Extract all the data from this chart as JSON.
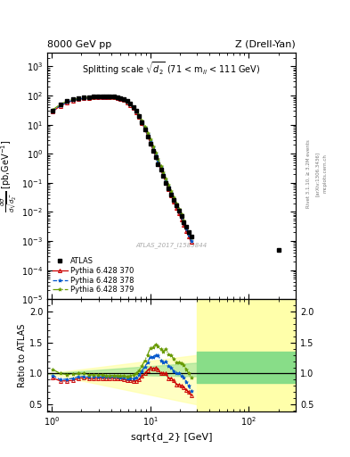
{
  "title_left": "8000 GeV pp",
  "title_right": "Z (Drell-Yan)",
  "plot_title": "Splitting scale $\\sqrt{\\mathregular{d_2}}$ (71 < m$_{\\mathregular{ll}}$ < 111 GeV)",
  "ylabel_main": "d$\\sigma$/dsqrt($d^-_2$) [pb,GeV$^{-1}$]",
  "ylabel_ratio": "Ratio to ATLAS",
  "xlabel": "sqrt{d_2} [GeV]",
  "watermark": "ATLAS_2017_I1589844",
  "rivet_label": "Rivet 3.1.10, ≥ 3.2M events",
  "arxiv_label": "[arXiv:1306.3436]",
  "mcplots_label": "mcplots.cern.ch",
  "atlas_x": [
    1.02,
    1.22,
    1.43,
    1.65,
    1.88,
    2.13,
    2.39,
    2.66,
    2.95,
    3.25,
    3.57,
    3.9,
    4.25,
    4.62,
    5.0,
    5.4,
    5.83,
    6.27,
    6.73,
    7.21,
    7.72,
    8.25,
    8.8,
    9.38,
    9.99,
    10.6,
    11.3,
    12.0,
    12.8,
    13.6,
    14.4,
    15.3,
    16.3,
    17.3,
    18.4,
    19.5,
    20.7,
    21.9,
    23.2,
    24.6,
    26.0,
    200.0
  ],
  "atlas_y": [
    30.0,
    50.0,
    65.0,
    75.0,
    80.0,
    85.0,
    90.0,
    92.0,
    93.0,
    94.0,
    94.0,
    93.0,
    91.0,
    87.0,
    82.0,
    75.0,
    65.0,
    53.0,
    41.0,
    30.0,
    20.0,
    12.0,
    7.0,
    4.0,
    2.2,
    1.3,
    0.75,
    0.45,
    0.28,
    0.17,
    0.1,
    0.065,
    0.04,
    0.026,
    0.017,
    0.011,
    0.007,
    0.0045,
    0.003,
    0.002,
    0.0014,
    0.0005
  ],
  "py370_x": [
    1.02,
    1.22,
    1.43,
    1.65,
    1.88,
    2.13,
    2.39,
    2.66,
    2.95,
    3.25,
    3.57,
    3.9,
    4.25,
    4.62,
    5.0,
    5.4,
    5.83,
    6.27,
    6.73,
    7.21,
    7.72,
    8.25,
    8.8,
    9.38,
    9.99,
    10.6,
    11.3,
    12.0,
    12.8,
    13.6,
    14.4,
    15.3,
    16.3,
    17.3,
    18.4,
    19.5,
    20.7,
    21.9,
    23.2,
    24.6,
    26.0
  ],
  "py370_y": [
    28.0,
    44.0,
    57.0,
    67.0,
    74.0,
    79.0,
    83.0,
    85.0,
    86.0,
    87.0,
    87.0,
    86.0,
    84.0,
    80.0,
    75.0,
    68.0,
    58.0,
    47.0,
    36.0,
    26.5,
    18.0,
    11.5,
    7.0,
    4.2,
    2.4,
    1.4,
    0.82,
    0.48,
    0.28,
    0.17,
    0.1,
    0.06,
    0.037,
    0.023,
    0.014,
    0.009,
    0.0056,
    0.0035,
    0.0022,
    0.0014,
    0.0009
  ],
  "py378_x": [
    1.02,
    1.22,
    1.43,
    1.65,
    1.88,
    2.13,
    2.39,
    2.66,
    2.95,
    3.25,
    3.57,
    3.9,
    4.25,
    4.62,
    5.0,
    5.4,
    5.83,
    6.27,
    6.73,
    7.21,
    7.72,
    8.25,
    8.8,
    9.38,
    9.99,
    10.6,
    11.3,
    12.0,
    12.8,
    13.6,
    14.4,
    15.3,
    16.3,
    17.3,
    18.4,
    19.5,
    20.7,
    21.9,
    23.2,
    24.6,
    26.0
  ],
  "py378_y": [
    29.0,
    45.0,
    59.0,
    69.0,
    76.0,
    81.0,
    85.0,
    87.0,
    88.0,
    89.0,
    89.0,
    88.0,
    86.0,
    82.0,
    77.0,
    70.0,
    60.0,
    49.0,
    38.0,
    28.0,
    19.5,
    12.5,
    7.8,
    4.7,
    2.8,
    1.65,
    0.97,
    0.58,
    0.34,
    0.2,
    0.12,
    0.073,
    0.044,
    0.027,
    0.017,
    0.011,
    0.0067,
    0.0042,
    0.0026,
    0.0016,
    0.001
  ],
  "py379_x": [
    1.02,
    1.22,
    1.43,
    1.65,
    1.88,
    2.13,
    2.39,
    2.66,
    2.95,
    3.25,
    3.57,
    3.9,
    4.25,
    4.62,
    5.0,
    5.4,
    5.83,
    6.27,
    6.73,
    7.21,
    7.72,
    8.25,
    8.8,
    9.38,
    9.99,
    10.6,
    11.3,
    12.0,
    12.8,
    13.6,
    14.4,
    15.3,
    16.3,
    17.3,
    18.4,
    19.5,
    20.7,
    21.9,
    23.2,
    24.6,
    26.0
  ],
  "py379_y": [
    32.0,
    50.0,
    64.0,
    74.0,
    80.0,
    85.0,
    88.0,
    90.0,
    91.0,
    92.0,
    91.0,
    90.0,
    88.0,
    84.0,
    79.0,
    72.0,
    62.0,
    51.0,
    40.0,
    30.0,
    21.0,
    13.5,
    8.5,
    5.2,
    3.1,
    1.85,
    1.1,
    0.65,
    0.39,
    0.23,
    0.14,
    0.085,
    0.052,
    0.032,
    0.02,
    0.013,
    0.0082,
    0.0051,
    0.0032,
    0.002,
    0.0013
  ],
  "ratio_370_x": [
    1.02,
    1.22,
    1.43,
    1.65,
    1.88,
    2.13,
    2.39,
    2.66,
    2.95,
    3.25,
    3.57,
    3.9,
    4.25,
    4.62,
    5.0,
    5.4,
    5.83,
    6.27,
    6.73,
    7.21,
    7.72,
    8.25,
    8.8,
    9.38,
    9.99,
    10.6,
    11.3,
    12.0,
    12.8,
    13.6,
    14.4,
    15.3,
    16.3,
    17.3,
    18.4,
    19.5,
    20.7,
    21.9,
    23.2,
    24.6,
    26.0
  ],
  "ratio_370_y": [
    0.93,
    0.88,
    0.88,
    0.89,
    0.925,
    0.93,
    0.92,
    0.92,
    0.925,
    0.925,
    0.925,
    0.925,
    0.923,
    0.92,
    0.915,
    0.907,
    0.892,
    0.887,
    0.878,
    0.883,
    0.9,
    0.958,
    1.0,
    1.05,
    1.09,
    1.08,
    1.09,
    1.07,
    1.0,
    1.0,
    1.0,
    0.923,
    0.925,
    0.885,
    0.824,
    0.818,
    0.8,
    0.778,
    0.733,
    0.7,
    0.643
  ],
  "ratio_378_x": [
    1.02,
    1.22,
    1.43,
    1.65,
    1.88,
    2.13,
    2.39,
    2.66,
    2.95,
    3.25,
    3.57,
    3.9,
    4.25,
    4.62,
    5.0,
    5.4,
    5.83,
    6.27,
    6.73,
    7.21,
    7.72,
    8.25,
    8.8,
    9.38,
    9.99,
    10.6,
    11.3,
    12.0,
    12.8,
    13.6,
    14.4,
    15.3,
    16.3,
    17.3,
    18.4,
    19.5,
    20.7,
    21.9,
    23.2,
    24.6,
    26.0
  ],
  "ratio_378_y": [
    0.97,
    0.9,
    0.91,
    0.92,
    0.95,
    0.953,
    0.944,
    0.946,
    0.946,
    0.947,
    0.947,
    0.946,
    0.945,
    0.943,
    0.939,
    0.933,
    0.923,
    0.925,
    0.927,
    0.933,
    0.975,
    1.042,
    1.114,
    1.175,
    1.273,
    1.269,
    1.293,
    1.289,
    1.214,
    1.176,
    1.2,
    1.123,
    1.1,
    1.038,
    1.0,
    1.0,
    0.957,
    0.933,
    0.867,
    0.8,
    0.714
  ],
  "ratio_379_x": [
    1.02,
    1.22,
    1.43,
    1.65,
    1.88,
    2.13,
    2.39,
    2.66,
    2.95,
    3.25,
    3.57,
    3.9,
    4.25,
    4.62,
    5.0,
    5.4,
    5.83,
    6.27,
    6.73,
    7.21,
    7.72,
    8.25,
    8.8,
    9.38,
    9.99,
    10.6,
    11.3,
    12.0,
    12.8,
    13.6,
    14.4,
    15.3,
    16.3,
    17.3,
    18.4,
    19.5,
    20.7,
    21.9,
    23.2,
    24.6,
    26.0
  ],
  "ratio_379_y": [
    1.067,
    1.0,
    0.985,
    0.987,
    1.0,
    1.0,
    0.978,
    0.978,
    0.978,
    0.979,
    0.968,
    0.968,
    0.967,
    0.966,
    0.963,
    0.96,
    0.954,
    0.962,
    0.976,
    1.0,
    1.05,
    1.125,
    1.214,
    1.3,
    1.409,
    1.423,
    1.467,
    1.444,
    1.393,
    1.353,
    1.4,
    1.308,
    1.3,
    1.231,
    1.176,
    1.182,
    1.171,
    1.133,
    1.067,
    1.0,
    0.929
  ],
  "color_atlas": "#000000",
  "color_py370": "#cc0000",
  "color_py378": "#0055cc",
  "color_py379": "#669900",
  "color_green_band": "#88dd88",
  "color_yellow_band": "#ffffaa",
  "xlim": [
    0.9,
    300
  ],
  "ylim_main": [
    1e-05,
    3000.0
  ],
  "ylim_ratio": [
    0.39,
    2.2
  ],
  "ratio_yticks": [
    0.5,
    1.0,
    1.5,
    2.0
  ]
}
